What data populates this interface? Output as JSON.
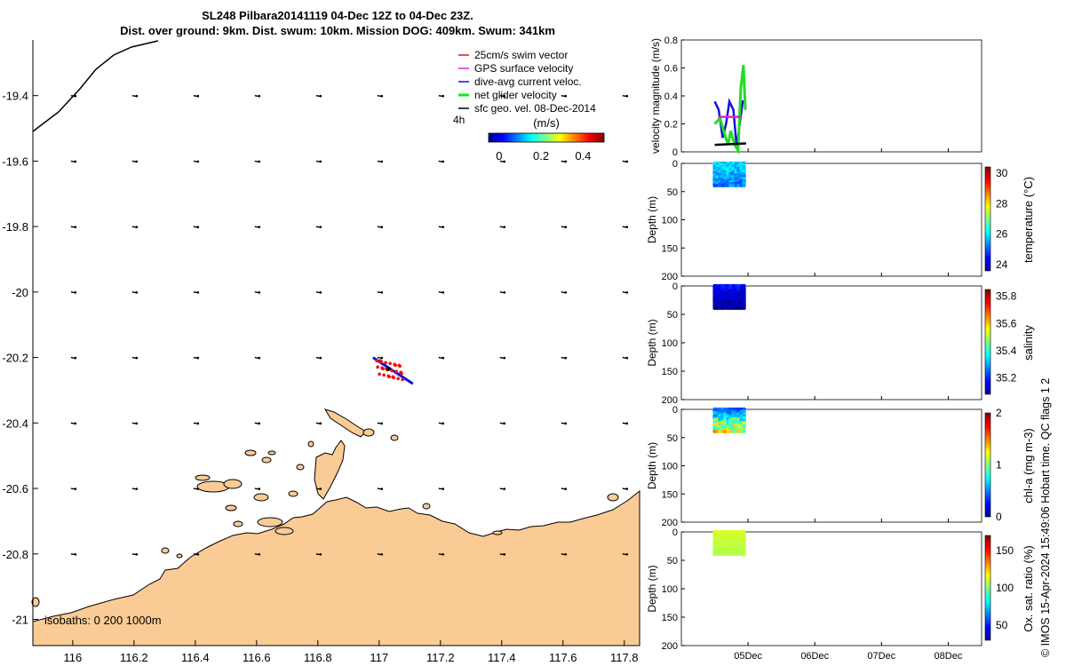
{
  "title": {
    "line1": "SL248 Pilbara20141119 04-Dec 12Z to 04-Dec 23Z.",
    "line2": "Dist. over ground: 9km. Dist. swum: 10km. Mission DOG: 409km. Swum: 341km"
  },
  "credit": "© IMOS 15-Apr-2024 15:49:06 Hobart time. QC flags 1  2",
  "colors": {
    "land": "#fbcb96",
    "swim": "#ee1111",
    "gps": "#dd22dd",
    "current": "#1111dd",
    "net": "#22dd22",
    "geo": "#000000"
  },
  "chart_data": [
    {
      "type": "map",
      "xlim": [
        115.87,
        117.85
      ],
      "ylim": [
        -21.08,
        -19.23
      ],
      "x_ticks": [
        "116",
        "116.2",
        "116.4",
        "116.6",
        "116.8",
        "117",
        "117.2",
        "117.4",
        "117.6",
        "117.8"
      ],
      "y_ticks": [
        "-19.4",
        "-19.6",
        "-19.8",
        "-20",
        "-20.2",
        "-20.4",
        "-20.6",
        "-20.8",
        "-21"
      ],
      "x_tick_values": [
        116,
        116.2,
        116.4,
        116.6,
        116.8,
        117,
        117.2,
        117.4,
        117.6,
        117.8
      ],
      "y_tick_values": [
        -19.4,
        -19.6,
        -19.8,
        -20,
        -20.2,
        -20.4,
        -20.6,
        -20.8,
        -21
      ],
      "legend": [
        {
          "label": "25cm/s swim vector",
          "color": "#ee1111"
        },
        {
          "label": "GPS surface velocity",
          "color": "#dd22dd"
        },
        {
          "label": "dive-avg current veloc.",
          "color": "#1111dd"
        },
        {
          "label": "net glider velocity",
          "color": "#22dd22"
        },
        {
          "label": "sfc geo. vel. 08-Dec-2014",
          "color": "#000000"
        }
      ],
      "legend_extra": "4h",
      "colorbar": {
        "label": "(m/s)",
        "ticks": [
          "0",
          "0.2",
          "0.4"
        ],
        "tick_values": [
          0,
          0.2,
          0.4
        ],
        "range": [
          -0.05,
          0.5
        ]
      },
      "isobaths_label": "isobaths: 0   200  1000m",
      "track": {
        "center": [
          117.03,
          -20.24
        ],
        "current_end": [
          117.11,
          -20.28
        ],
        "current_start": [
          116.98,
          -20.2
        ]
      }
    },
    {
      "type": "line",
      "ylabel": "velocity magnitude (m/s)",
      "ylim": [
        0,
        0.8
      ],
      "y_ticks": [
        "0",
        "0.2",
        "0.4",
        "0.6",
        "0.8"
      ],
      "y_tick_values": [
        0,
        0.2,
        0.4,
        0.6,
        0.8
      ],
      "xlim": [
        0,
        4.5
      ],
      "x_ticks": [
        "05Dec",
        "06Dec",
        "07Dec",
        "08Dec"
      ],
      "x_tick_values": [
        1,
        2,
        3,
        4
      ],
      "series": [
        {
          "color": "#1111dd",
          "x": [
            0.5,
            0.56,
            0.62,
            0.67,
            0.72,
            0.78,
            0.83,
            0.88,
            0.92,
            0.96
          ],
          "y": [
            0.36,
            0.3,
            0.1,
            0.2,
            0.36,
            0.3,
            0.03,
            0.22,
            0.36,
            0.35
          ]
        },
        {
          "color": "#22dd22",
          "x": [
            0.5,
            0.58,
            0.64,
            0.7,
            0.74,
            0.8,
            0.85,
            0.89,
            0.93,
            0.96
          ],
          "y": [
            0.2,
            0.24,
            0.14,
            0.05,
            0.15,
            0.05,
            0.01,
            0.45,
            0.62,
            0.3
          ]
        },
        {
          "color": "#dd22dd",
          "x": [
            0.55,
            0.9
          ],
          "y": [
            0.25,
            0.25
          ]
        },
        {
          "color": "#000000",
          "x": [
            0.5,
            0.97
          ],
          "y": [
            0.05,
            0.06
          ]
        }
      ]
    },
    {
      "type": "scatter",
      "ylabel": "Depth (m)",
      "ylim": [
        0,
        200
      ],
      "y_ticks": [
        "0",
        "50",
        "100",
        "150",
        "200"
      ],
      "y_tick_values": [
        0,
        50,
        100,
        150,
        200
      ],
      "cbar_label": "temperature (°C)",
      "cbar_ticks": [
        "24",
        "26",
        "28",
        "30"
      ],
      "cbar_tick_values": [
        24,
        26,
        28,
        30
      ],
      "crange": [
        23.6,
        30.4
      ],
      "data_x": [
        0.5,
        0.96
      ],
      "data_depth": [
        0,
        40
      ],
      "surface_value": 26.0,
      "deep_value": 25.3,
      "noise": 0.5
    },
    {
      "type": "scatter",
      "ylabel": "Depth (m)",
      "ylim": [
        0,
        200
      ],
      "y_ticks": [
        "0",
        "50",
        "100",
        "150",
        "200"
      ],
      "y_tick_values": [
        0,
        50,
        100,
        150,
        200
      ],
      "cbar_label": "salinity",
      "cbar_ticks": [
        "35.2",
        "35.4",
        "35.6",
        "35.8"
      ],
      "cbar_tick_values": [
        35.2,
        35.4,
        35.6,
        35.8
      ],
      "crange": [
        35.08,
        35.85
      ],
      "data_x": [
        0.5,
        0.96
      ],
      "data_depth": [
        0,
        40
      ],
      "surface_value": 35.18,
      "deep_value": 35.1,
      "noise": 0.04
    },
    {
      "type": "scatter",
      "ylabel": "Depth (m)",
      "ylim": [
        0,
        200
      ],
      "y_ticks": [
        "0",
        "50",
        "100",
        "150",
        "200"
      ],
      "y_tick_values": [
        0,
        50,
        100,
        150,
        200
      ],
      "cbar_label": "chl-a (mg m-3)",
      "cbar_ticks": [
        "0",
        "1",
        "2"
      ],
      "cbar_tick_values": [
        0,
        1,
        2
      ],
      "crange": [
        0,
        2
      ],
      "data_x": [
        0.5,
        0.96
      ],
      "data_depth": [
        0,
        40
      ],
      "surface_value": 0.45,
      "deep_value": 1.05,
      "noise": 0.15
    },
    {
      "type": "scatter",
      "ylabel": "Depth (m)",
      "ylim": [
        0,
        200
      ],
      "y_ticks": [
        "0",
        "50",
        "100",
        "150",
        "200"
      ],
      "y_tick_values": [
        0,
        50,
        100,
        150,
        200
      ],
      "cbar_label": "Ox. sat. ratio (%)",
      "cbar_ticks": [
        "50",
        "100",
        "150"
      ],
      "cbar_tick_values": [
        50,
        100,
        150
      ],
      "crange": [
        30,
        170
      ],
      "data_x": [
        0.5,
        0.96
      ],
      "data_depth": [
        0,
        40
      ],
      "surface_value": 112,
      "deep_value": 107,
      "noise": 2
    },
    {
      "type": "table",
      "note": "map sample grid of surface geostrophic velocity arrows (u,v in m/s)",
      "geo_vectors": {
        "lons": [
          116,
          116.2,
          116.4,
          116.6,
          116.8,
          117,
          117.2,
          117.4,
          117.6,
          117.8
        ],
        "lats": [
          -19.4,
          -19.6,
          -19.8,
          -20,
          -20.2,
          -20.4,
          -20.6,
          -20.8
        ],
        "u": 0.04,
        "v_north": -0.005
      }
    }
  ]
}
